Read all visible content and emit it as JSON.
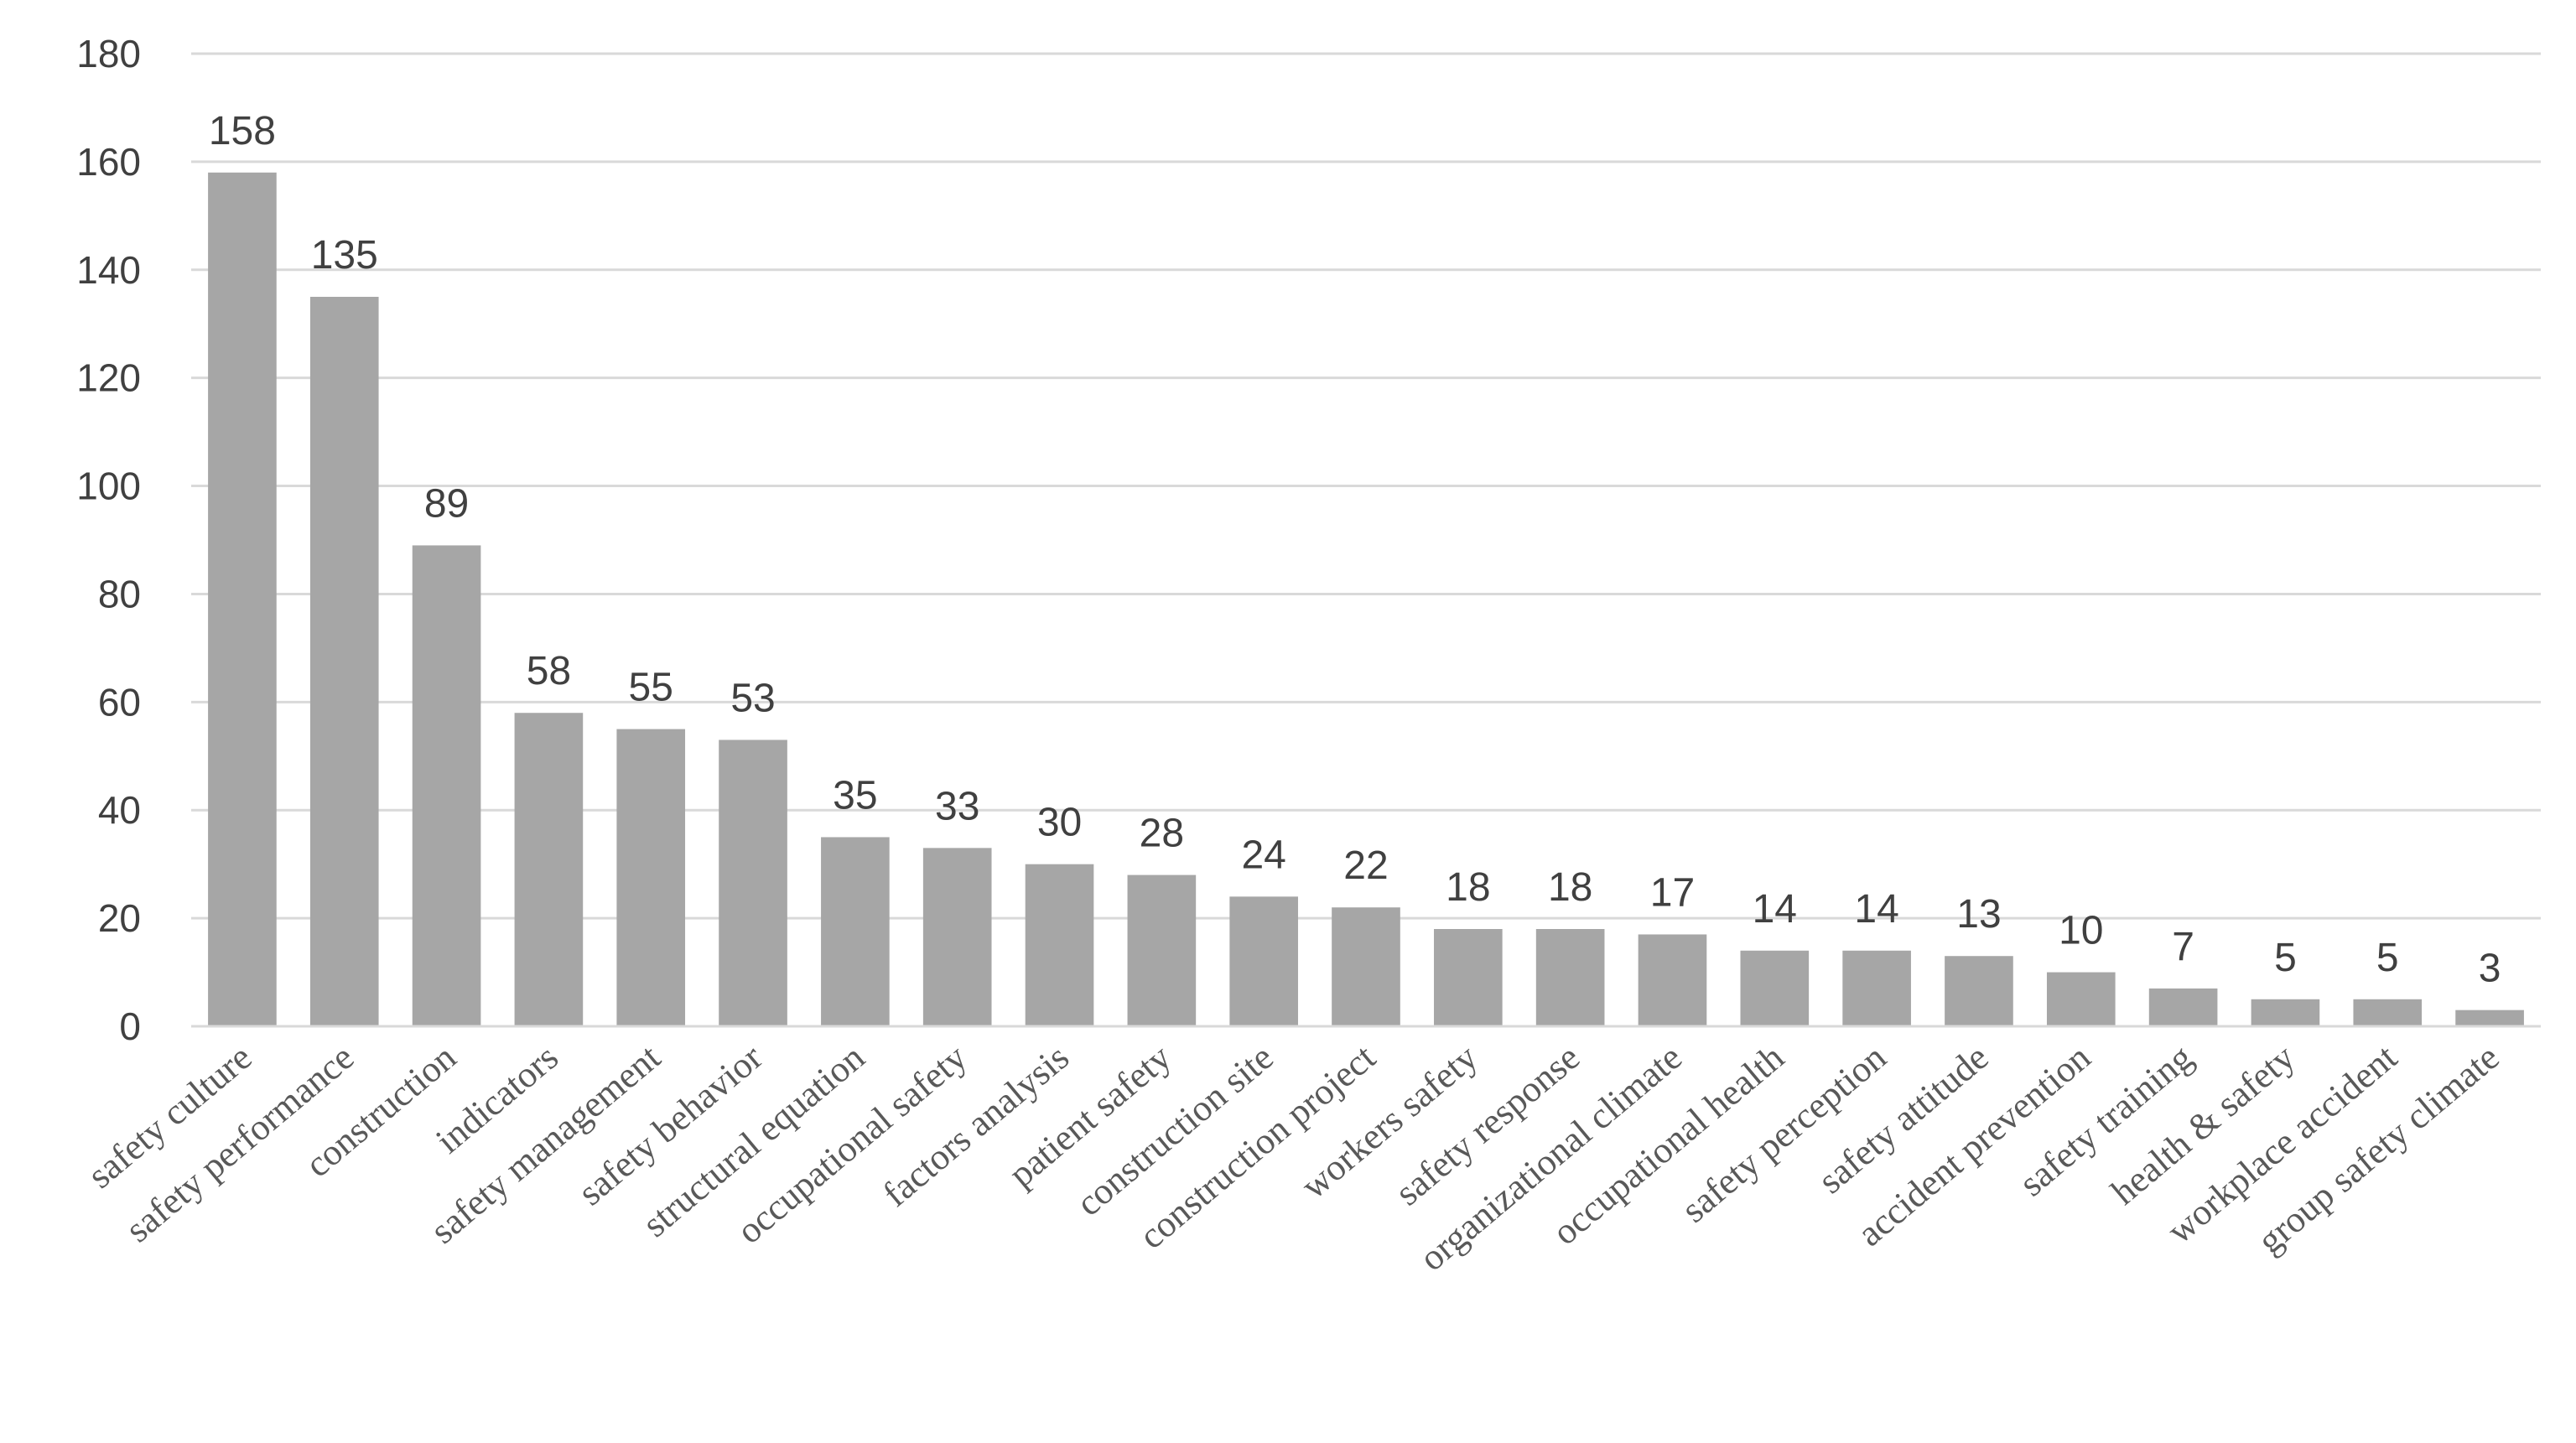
{
  "chart_data": {
    "type": "bar",
    "title": "",
    "xlabel": "",
    "ylabel": "",
    "ylim": [
      0,
      180
    ],
    "yticks": [
      0,
      20,
      40,
      60,
      80,
      100,
      120,
      140,
      160,
      180
    ],
    "grid": true,
    "legend": "none",
    "bar_color": "#a6a6a6",
    "grid_color": "#d9d9d9",
    "categories": [
      "safety culture",
      "safety performance",
      "construction",
      "indicators",
      "safety management",
      "safety behavior",
      "structural equation",
      "occupational safety",
      "factors analysis",
      "patient safety",
      "construction site",
      "construction project",
      "workers safety",
      "safety response",
      "organizational climate",
      "occupational health",
      "safety perception",
      "safety attitude",
      "accident prevention",
      "safety training",
      "health & safety",
      "workplace accident",
      "group safety climate"
    ],
    "values": [
      158,
      135,
      89,
      58,
      55,
      53,
      35,
      33,
      30,
      28,
      24,
      22,
      18,
      18,
      17,
      14,
      14,
      13,
      10,
      7,
      5,
      5,
      3
    ],
    "data_labels": [
      "158",
      "135",
      "89",
      "58",
      "55",
      "53",
      "35",
      "33",
      "30",
      "28",
      "24",
      "22",
      "18",
      "18",
      "17",
      "14",
      "14",
      "13",
      "10",
      "7",
      "5",
      "5",
      "3"
    ],
    "ytick_labels": [
      "0",
      "20",
      "40",
      "60",
      "80",
      "100",
      "120",
      "140",
      "160",
      "180"
    ]
  }
}
